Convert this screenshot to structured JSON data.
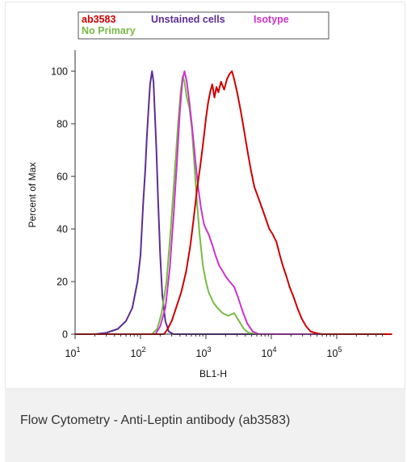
{
  "chart_data": {
    "type": "line",
    "title": "",
    "xlabel": "BL1-H",
    "ylabel": "Percent of Max",
    "x_scale": "log",
    "xlim": [
      10,
      700000
    ],
    "ylim": [
      0,
      108
    ],
    "grid": false,
    "legend_placement": "top",
    "x_tick_labels": [
      {
        "base": "10",
        "exp": "1",
        "value": 10
      },
      {
        "base": "10",
        "exp": "2",
        "value": 100
      },
      {
        "base": "10",
        "exp": "3",
        "value": 1000
      },
      {
        "base": "10",
        "exp": "4",
        "value": 10000
      },
      {
        "base": "10",
        "exp": "5",
        "value": 100000
      }
    ],
    "y_ticks": [
      0,
      20,
      40,
      60,
      80,
      100
    ],
    "y_tick_labels": [
      "0",
      "20",
      "40",
      "60",
      "80",
      "100"
    ],
    "legend": [
      {
        "label": "ab3583",
        "color": "#cc0000"
      },
      {
        "label": "Unstained cells",
        "color": "#5c2d91"
      },
      {
        "label": "Isotype",
        "color": "#cc33cc"
      },
      {
        "label": "No Primary",
        "color": "#77bb44"
      }
    ],
    "series": [
      {
        "name": "Unstained cells",
        "color": "#5c2d91",
        "points": [
          [
            10,
            0
          ],
          [
            20,
            0
          ],
          [
            30,
            0.5
          ],
          [
            45,
            2
          ],
          [
            60,
            5
          ],
          [
            75,
            10
          ],
          [
            90,
            20
          ],
          [
            100,
            30
          ],
          [
            110,
            50
          ],
          [
            118,
            62
          ],
          [
            125,
            75
          ],
          [
            132,
            85
          ],
          [
            140,
            95
          ],
          [
            150,
            100
          ],
          [
            158,
            96
          ],
          [
            165,
            85
          ],
          [
            175,
            70
          ],
          [
            185,
            52
          ],
          [
            200,
            30
          ],
          [
            215,
            15
          ],
          [
            240,
            5
          ],
          [
            270,
            1
          ],
          [
            320,
            0
          ],
          [
            700000,
            0
          ]
        ]
      },
      {
        "name": "No Primary",
        "color": "#77bb44",
        "points": [
          [
            10,
            0
          ],
          [
            150,
            0
          ],
          [
            180,
            2
          ],
          [
            210,
            8
          ],
          [
            250,
            20
          ],
          [
            290,
            40
          ],
          [
            330,
            60
          ],
          [
            370,
            78
          ],
          [
            410,
            92
          ],
          [
            440,
            98
          ],
          [
            470,
            96
          ],
          [
            510,
            90
          ],
          [
            560,
            86
          ],
          [
            610,
            78
          ],
          [
            660,
            66
          ],
          [
            720,
            52
          ],
          [
            800,
            38
          ],
          [
            900,
            26
          ],
          [
            1000,
            20
          ],
          [
            1100,
            16
          ],
          [
            1300,
            12
          ],
          [
            1500,
            10
          ],
          [
            1800,
            8
          ],
          [
            2200,
            7
          ],
          [
            2700,
            8
          ],
          [
            3200,
            5
          ],
          [
            3800,
            2
          ],
          [
            4500,
            0.5
          ],
          [
            6000,
            0
          ],
          [
            700000,
            0
          ]
        ]
      },
      {
        "name": "Isotype",
        "color": "#cc33cc",
        "points": [
          [
            10,
            0
          ],
          [
            170,
            0
          ],
          [
            200,
            3
          ],
          [
            240,
            10
          ],
          [
            280,
            25
          ],
          [
            320,
            45
          ],
          [
            360,
            65
          ],
          [
            400,
            85
          ],
          [
            440,
            97
          ],
          [
            470,
            100
          ],
          [
            510,
            96
          ],
          [
            560,
            88
          ],
          [
            620,
            78
          ],
          [
            690,
            66
          ],
          [
            760,
            56
          ],
          [
            840,
            48
          ],
          [
            930,
            42
          ],
          [
            1000,
            40
          ],
          [
            1100,
            38
          ],
          [
            1250,
            34
          ],
          [
            1400,
            30
          ],
          [
            1600,
            26
          ],
          [
            1800,
            24
          ],
          [
            2000,
            22
          ],
          [
            2300,
            20
          ],
          [
            2700,
            18
          ],
          [
            3100,
            14
          ],
          [
            3600,
            9
          ],
          [
            4300,
            4
          ],
          [
            5200,
            1
          ],
          [
            6500,
            0
          ],
          [
            700000,
            0
          ]
        ]
      },
      {
        "name": "ab3583",
        "color": "#cc0000",
        "points": [
          [
            10,
            0
          ],
          [
            230,
            0
          ],
          [
            260,
            2
          ],
          [
            300,
            5
          ],
          [
            350,
            10
          ],
          [
            420,
            16
          ],
          [
            500,
            24
          ],
          [
            580,
            34
          ],
          [
            650,
            44
          ],
          [
            730,
            55
          ],
          [
            820,
            64
          ],
          [
            900,
            72
          ],
          [
            1000,
            82
          ],
          [
            1080,
            88
          ],
          [
            1160,
            92
          ],
          [
            1250,
            95
          ],
          [
            1350,
            90
          ],
          [
            1450,
            94
          ],
          [
            1550,
            92
          ],
          [
            1700,
            96
          ],
          [
            1900,
            93
          ],
          [
            2100,
            97
          ],
          [
            2300,
            99
          ],
          [
            2500,
            100
          ],
          [
            2700,
            97
          ],
          [
            3000,
            92
          ],
          [
            3400,
            85
          ],
          [
            3800,
            78
          ],
          [
            4300,
            70
          ],
          [
            4900,
            62
          ],
          [
            5500,
            56
          ],
          [
            6300,
            52
          ],
          [
            7200,
            48
          ],
          [
            8200,
            44
          ],
          [
            9300,
            40
          ],
          [
            10500,
            38
          ],
          [
            12000,
            35
          ],
          [
            13500,
            30
          ],
          [
            15000,
            26
          ],
          [
            17000,
            22
          ],
          [
            19000,
            18
          ],
          [
            22000,
            14
          ],
          [
            25000,
            10
          ],
          [
            29000,
            6
          ],
          [
            34000,
            3
          ],
          [
            40000,
            1
          ],
          [
            50000,
            0.3
          ],
          [
            60000,
            0
          ],
          [
            700000,
            0
          ]
        ]
      }
    ]
  },
  "caption": "Flow Cytometry - Anti-Leptin antibody (ab3583)"
}
